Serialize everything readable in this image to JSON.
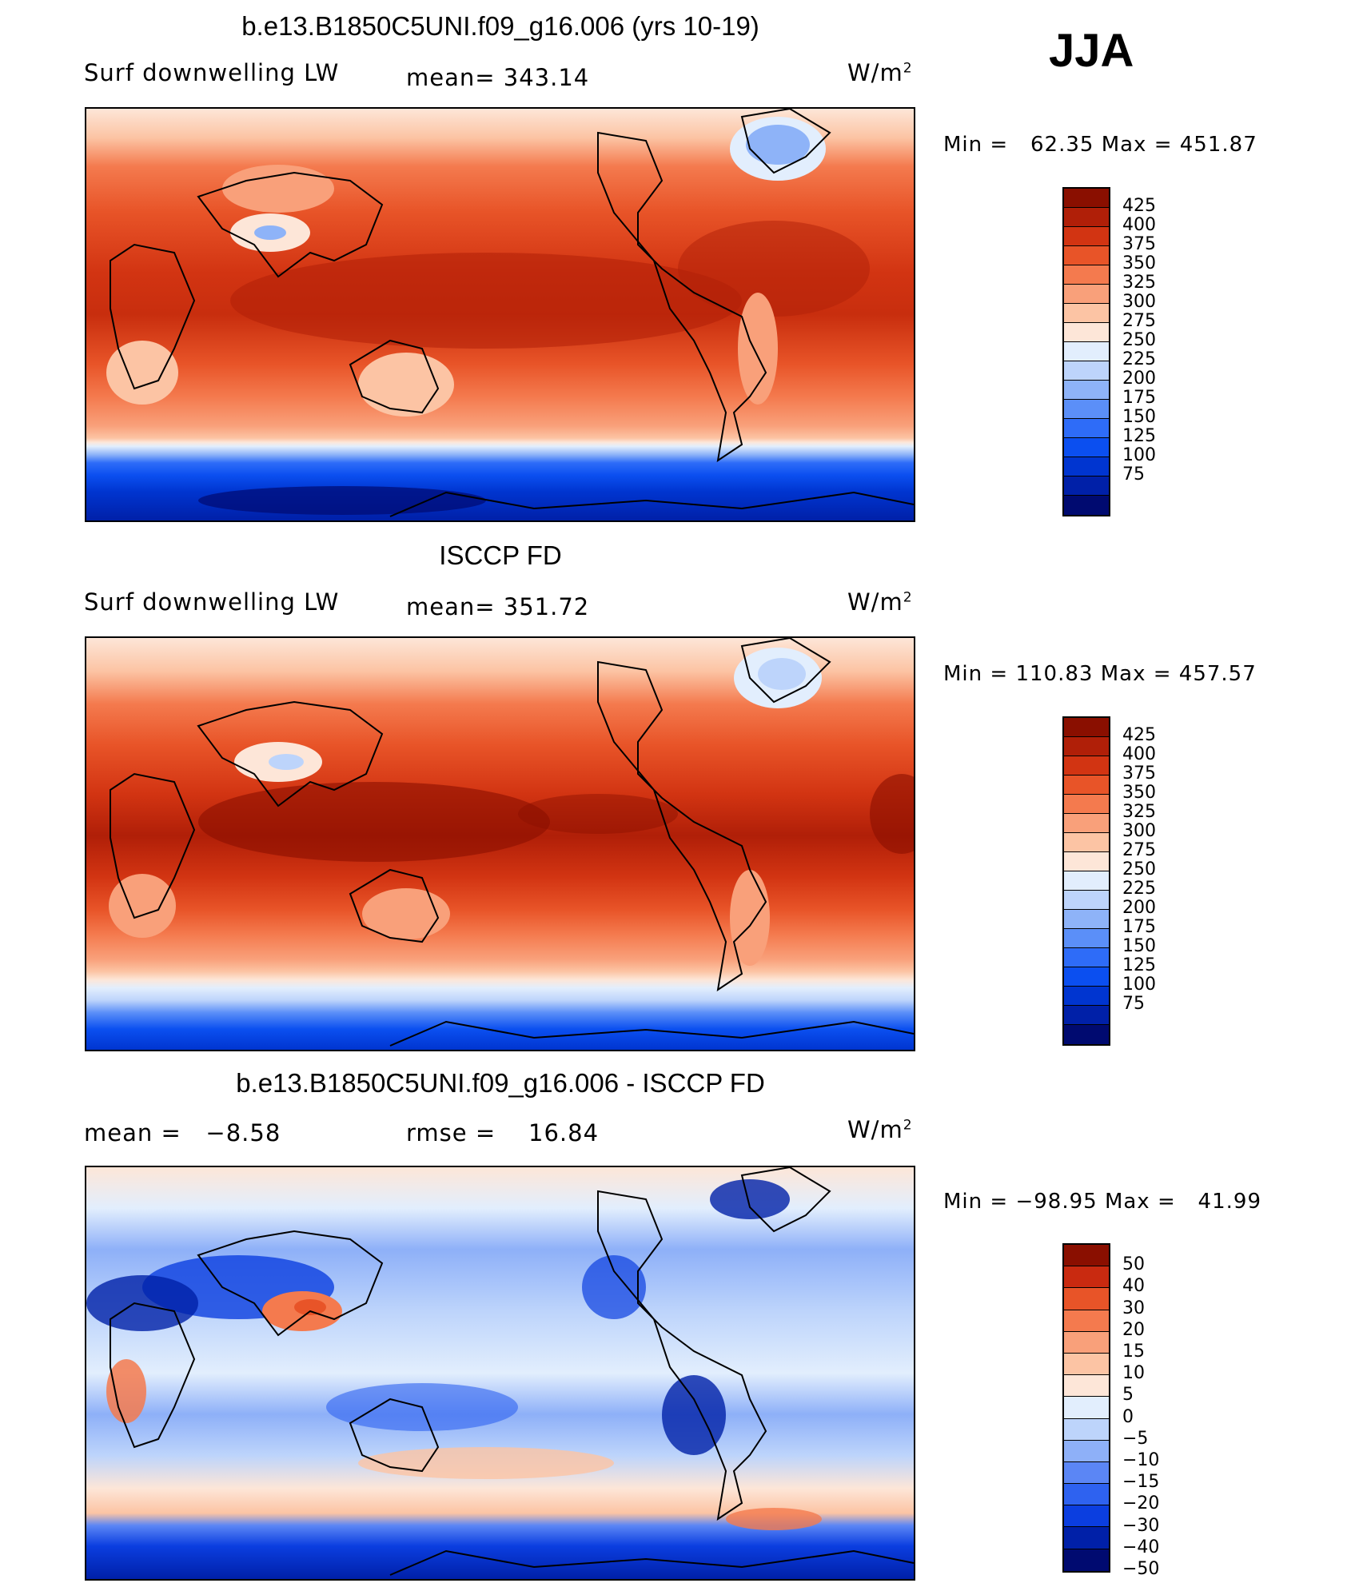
{
  "season": "JJA",
  "units": "W/m²",
  "palette_main": [
    "#000a70",
    "#0020a8",
    "#0035d0",
    "#0b4ff0",
    "#2e6cf8",
    "#5b8ff8",
    "#8eb3f8",
    "#bdd4fb",
    "#e2eefd",
    "#fde6d8",
    "#fcc4a4",
    "#f9a07a",
    "#f47a4e",
    "#e85428",
    "#d23412",
    "#b01f08",
    "#8a0f00"
  ],
  "palette_diff": [
    "#000a70",
    "#0020a8",
    "#0b3ee0",
    "#2e62f0",
    "#5b86f5",
    "#8eb0f8",
    "#bdd4fb",
    "#e2eefd",
    "#fde6d8",
    "#fcc4a4",
    "#f9a07a",
    "#f47a4e",
    "#e85428",
    "#c92a10",
    "#8a0f00"
  ],
  "panels": [
    {
      "title": "b.e13.B1850C5UNI.f09_g16.006 (yrs 10-19)",
      "left_label": "Surf downwelling LW",
      "center_label": "mean= 343.14",
      "units_label": "W/m",
      "units_sup": "2",
      "min_label": "Min =",
      "min_value": "62.35",
      "max_label": "Max =",
      "max_value": "451.87",
      "levels": [
        "425",
        "400",
        "375",
        "350",
        "325",
        "300",
        "275",
        "250",
        "225",
        "200",
        "175",
        "150",
        "125",
        "100",
        "75"
      ]
    },
    {
      "title": "ISCCP FD",
      "left_label": "Surf downwelling LW",
      "center_label": "mean= 351.72",
      "units_label": "W/m",
      "units_sup": "2",
      "min_label": "Min =",
      "min_value": "110.83",
      "max_label": "Max =",
      "max_value": "457.57",
      "levels": [
        "425",
        "400",
        "375",
        "350",
        "325",
        "300",
        "275",
        "250",
        "225",
        "200",
        "175",
        "150",
        "125",
        "100",
        "75"
      ]
    },
    {
      "title": "b.e13.B1850C5UNI.f09_g16.006 - ISCCP FD",
      "left_label": "mean =",
      "left_value": "−8.58",
      "center_label": "rmse =",
      "center_value": "16.84",
      "units_label": "W/m",
      "units_sup": "2",
      "min_label": "Min =",
      "min_value": "−98.95",
      "max_label": "Max =",
      "max_value": "41.99",
      "levels": [
        "50",
        "40",
        "30",
        "20",
        "15",
        "10",
        "5",
        "0",
        "−5",
        "−10",
        "−15",
        "−20",
        "−30",
        "−40",
        "−50"
      ]
    }
  ]
}
